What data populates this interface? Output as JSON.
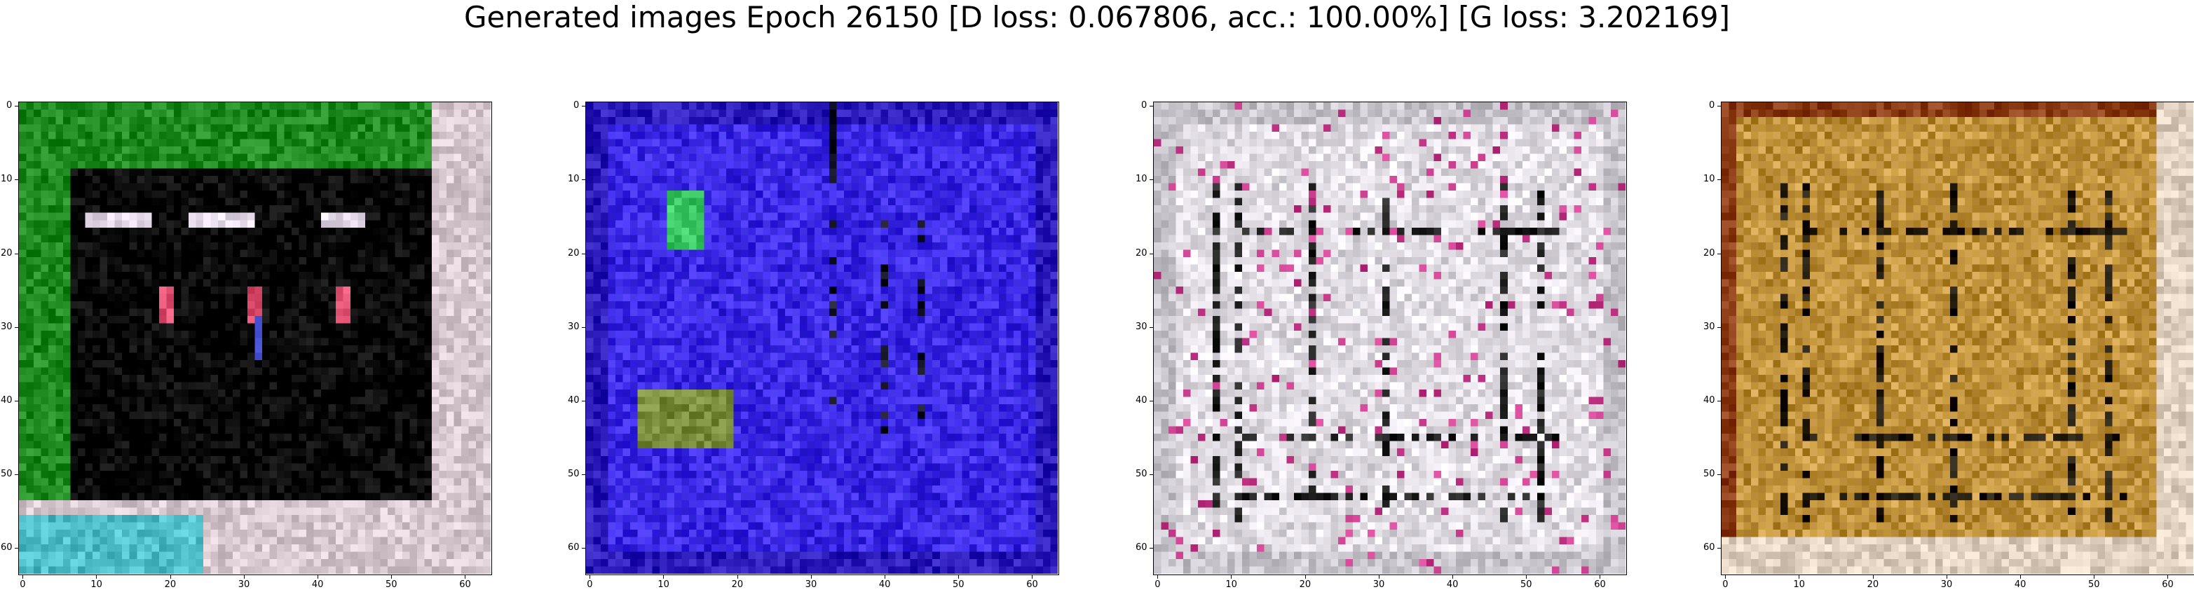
{
  "figure": {
    "title": "Generated images Epoch 26150 [D loss: 0.067806, acc.: 100.00%] [G loss: 3.202169]"
  },
  "axes": {
    "x_ticks": [
      "0",
      "10",
      "20",
      "30",
      "40",
      "50",
      "60"
    ],
    "y_ticks": [
      "0",
      "10",
      "20",
      "30",
      "40",
      "50",
      "60"
    ],
    "range": [
      0,
      63
    ]
  },
  "panels": [
    {
      "id": "sample-1",
      "description_palette": {
        "frame": "#1f8a1f",
        "center": "#050505",
        "border": "#d8c8d0",
        "accent": "#e05070"
      }
    },
    {
      "id": "sample-2",
      "description_palette": {
        "frame": "#3a2ae0",
        "center": "#3c28e8",
        "border": "#2a1ab8",
        "accent": "#40c040"
      }
    },
    {
      "id": "sample-3",
      "description_palette": {
        "frame": "#dcd8e0",
        "center": "#e6e2e8",
        "border": "#c8c4cc",
        "accent": "#202020"
      }
    },
    {
      "id": "sample-4",
      "description_palette": {
        "frame": "#b88a30",
        "center": "#c89a48",
        "border": "#e0d0c0",
        "accent": "#201808"
      }
    }
  ]
}
